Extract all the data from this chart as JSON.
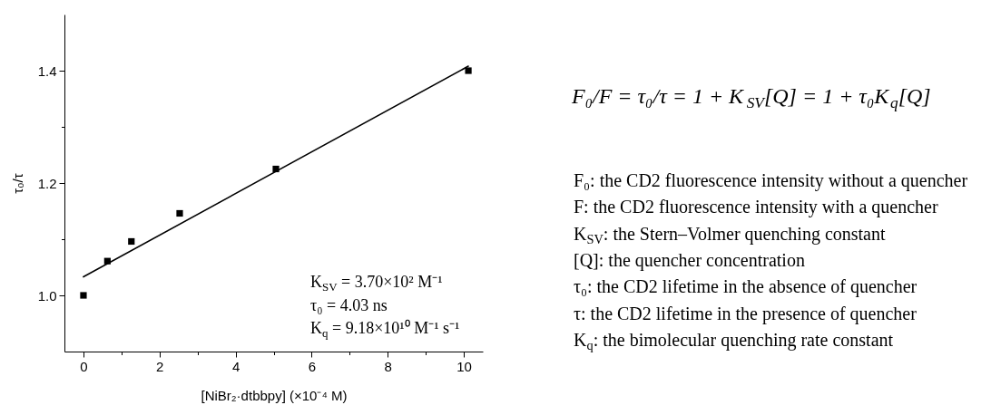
{
  "chart_data": {
    "type": "scatter",
    "xlabel": "[NiBr₂·dtbbpy] (×10⁻⁴ M)",
    "ylabel": "τ₀/τ",
    "xlim": [
      -0.5,
      10.5
    ],
    "xticks": [
      0,
      {
        "value": 1,
        "label": null
      },
      2,
      {
        "value": 3,
        "label": null
      },
      4,
      {
        "value": 5,
        "label": null
      },
      6,
      {
        "value": 7,
        "label": null
      },
      8,
      {
        "value": 9,
        "label": null
      },
      10
    ],
    "ylim": [
      0.9,
      1.5
    ],
    "yticks": [
      {
        "value": 1.0,
        "label": "1.0"
      },
      {
        "value": 1.1,
        "label": null
      },
      1.2,
      {
        "value": 1.3,
        "label": null
      },
      1.4
    ],
    "series": [
      {
        "marker": "square",
        "color": "#000000",
        "x": [
          0,
          0.63,
          1.26,
          2.53,
          5.06,
          10.12
        ],
        "values": [
          1.0,
          1.061,
          1.096,
          1.146,
          1.225,
          1.4
        ]
      },
      {
        "type": "line",
        "color": "#000000",
        "x": [
          0,
          10.12
        ],
        "values": [
          1.033,
          1.408
        ]
      }
    ],
    "annotations": [
      "K$_{SV}$ = 3.70×10² M⁻¹",
      "τ₀ = 4.03 ns",
      "K$_{q}$ = 9.18×10¹⁰ M⁻¹ s⁻¹",
      "F₀/F = τ₀/τ = 1 + K$_{SV}$[Q] = 1 + τ₀K$_{q}$[Q]",
      "F₀: the CD2 fluorescence intensity without a quencher",
      "F: the CD2 fluorescence intensity with a quencher",
      "K$_{SV}$: the Stern–Volmer quenching constant",
      "[Q]: the quencher concentration",
      "τ₀: the CD2 lifetime in the absence of quencher",
      "τ: the CD2 lifetime in the presence of quencher",
      "K$_{q}$: the bimolecular quenching rate constant"
    ]
  }
}
